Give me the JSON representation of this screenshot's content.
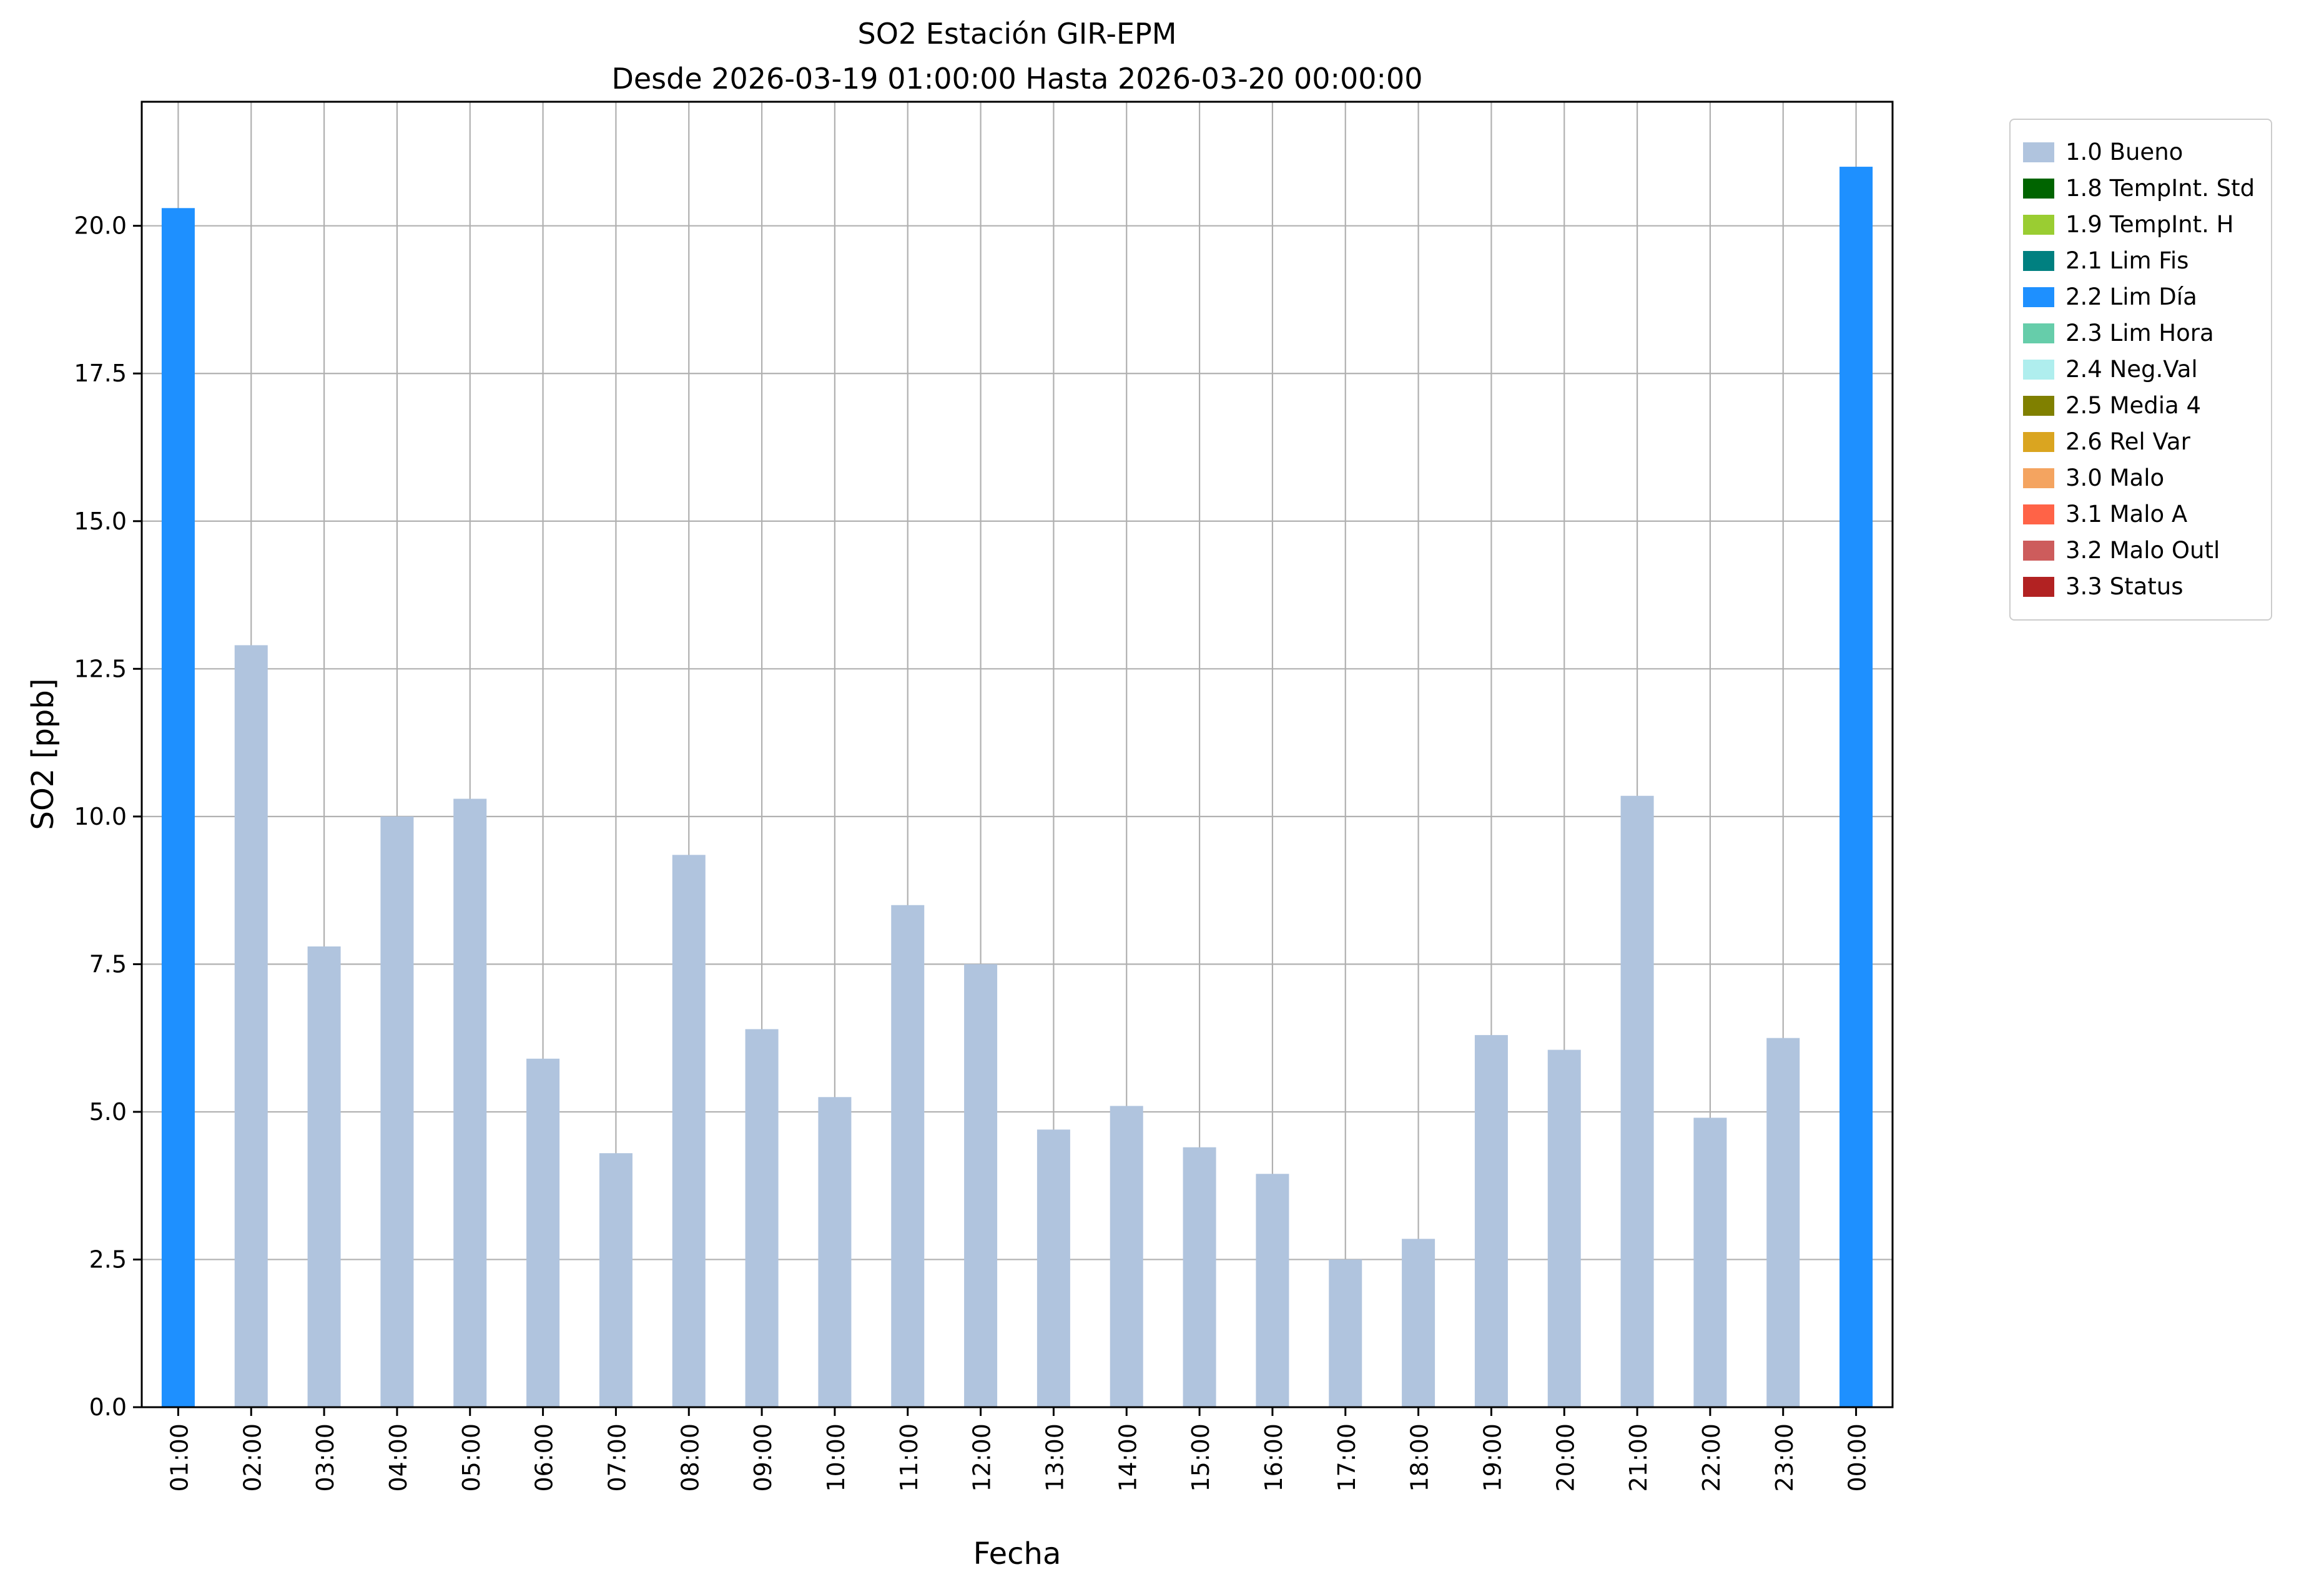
{
  "chart_data": {
    "type": "bar",
    "title": "SO2 Estación GIR-EPM",
    "subtitle": "Desde 2026-03-19 01:00:00 Hasta 2026-03-20 00:00:00",
    "xlabel": "Fecha",
    "ylabel": "SO2 [ppb]",
    "categories": [
      "01:00",
      "02:00",
      "03:00",
      "04:00",
      "05:00",
      "06:00",
      "07:00",
      "08:00",
      "09:00",
      "10:00",
      "11:00",
      "12:00",
      "13:00",
      "14:00",
      "15:00",
      "16:00",
      "17:00",
      "18:00",
      "19:00",
      "20:00",
      "21:00",
      "22:00",
      "23:00",
      "00:00"
    ],
    "values": [
      20.3,
      12.9,
      7.8,
      10.0,
      10.3,
      5.9,
      4.3,
      9.35,
      6.4,
      5.25,
      8.5,
      7.5,
      4.7,
      5.1,
      4.4,
      3.95,
      2.5,
      2.85,
      6.3,
      6.05,
      10.35,
      4.9,
      6.25,
      21.0
    ],
    "bar_states": [
      "2.2 Lim Día",
      "1.0 Bueno",
      "1.0 Bueno",
      "1.0 Bueno",
      "1.0 Bueno",
      "1.0 Bueno",
      "1.0 Bueno",
      "1.0 Bueno",
      "1.0 Bueno",
      "1.0 Bueno",
      "1.0 Bueno",
      "1.0 Bueno",
      "1.0 Bueno",
      "1.0 Bueno",
      "1.0 Bueno",
      "1.0 Bueno",
      "1.0 Bueno",
      "1.0 Bueno",
      "1.0 Bueno",
      "1.0 Bueno",
      "1.0 Bueno",
      "1.0 Bueno",
      "1.0 Bueno",
      "2.2 Lim Día"
    ],
    "ylim": [
      0,
      22.1
    ],
    "yticks": [
      0.0,
      2.5,
      5.0,
      7.5,
      10.0,
      12.5,
      15.0,
      17.5,
      20.0
    ],
    "grid": true,
    "grid_color": "#b0b0b0",
    "frame_color": "#000000",
    "legend_position": "outside upper right",
    "legend": [
      {
        "label": "1.0 Bueno",
        "color": "#b0c4de"
      },
      {
        "label": "1.8 TempInt. Std",
        "color": "#006400"
      },
      {
        "label": "1.9 TempInt. H",
        "color": "#9acd32"
      },
      {
        "label": "2.1 Lim Fis",
        "color": "#008080"
      },
      {
        "label": "2.2 Lim Día",
        "color": "#1e90ff"
      },
      {
        "label": "2.3 Lim Hora",
        "color": "#66cdaa"
      },
      {
        "label": "2.4 Neg.Val",
        "color": "#afeeee"
      },
      {
        "label": "2.5 Media 4",
        "color": "#808000"
      },
      {
        "label": "2.6 Rel Var",
        "color": "#daa520"
      },
      {
        "label": "3.0 Malo",
        "color": "#f4a460"
      },
      {
        "label": "3.1 Malo A",
        "color": "#ff6347"
      },
      {
        "label": "3.2 Malo Outl",
        "color": "#cd5c5c"
      },
      {
        "label": "3.3 Status",
        "color": "#b22222"
      }
    ]
  }
}
